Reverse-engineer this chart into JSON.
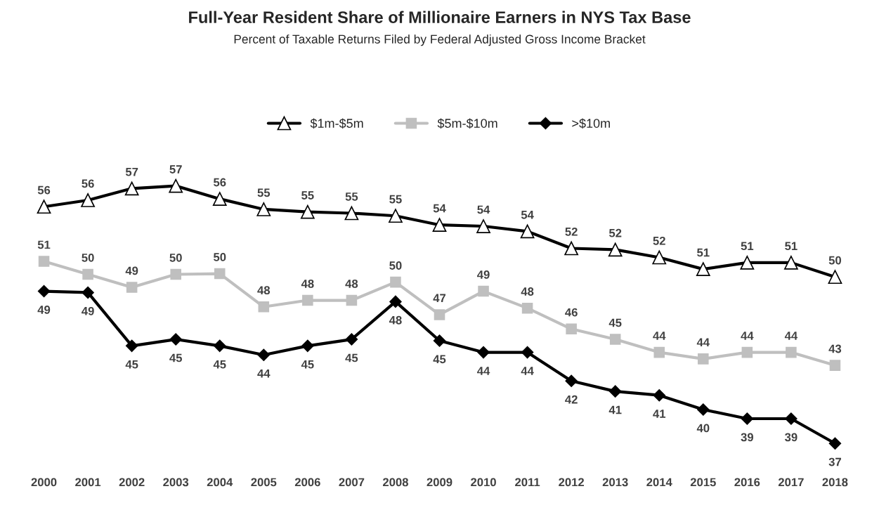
{
  "chart_data": {
    "type": "line",
    "title": "Full-Year Resident Share of Millionaire Earners in NYS Tax Base",
    "subtitle": "Percent of Taxable Returns Filed by Federal Adjusted Gross Income Bracket",
    "categories": [
      "2000",
      "2001",
      "2002",
      "2003",
      "2004",
      "2005",
      "2006",
      "2007",
      "2008",
      "2009",
      "2010",
      "2011",
      "2012",
      "2013",
      "2014",
      "2015",
      "2016",
      "2017",
      "2018"
    ],
    "series": [
      {
        "name": "$1m-$5m",
        "color": "#000000",
        "marker": "triangle",
        "values": [
          55.6,
          56.1,
          57.0,
          57.2,
          56.2,
          55.4,
          55.2,
          55.1,
          54.9,
          54.2,
          54.1,
          53.7,
          52.4,
          52.3,
          51.7,
          50.8,
          51.3,
          51.3,
          50.2
        ],
        "value_labels": [
          "56",
          "56",
          "57",
          "57",
          "56",
          "55",
          "55",
          "55",
          "55",
          "54",
          "54",
          "54",
          "52",
          "52",
          "52",
          "51",
          "51",
          "51",
          "50"
        ]
      },
      {
        "name": "$5m-$10m",
        "color": "#bfbfbf",
        "marker": "square",
        "values": [
          51.4,
          50.4,
          49.4,
          50.4,
          50.45,
          47.9,
          48.4,
          48.4,
          49.8,
          47.3,
          49.1,
          47.8,
          46.2,
          45.4,
          44.4,
          43.9,
          44.4,
          44.4,
          43.4
        ],
        "value_labels": [
          "51",
          "50",
          "49",
          "50",
          "50",
          "48",
          "48",
          "48",
          "50",
          "47",
          "49",
          "48",
          "46",
          "45",
          "44",
          "44",
          "44",
          "44",
          "43"
        ]
      },
      {
        "name": ">$10m",
        "color": "#000000",
        "marker": "diamond",
        "values": [
          49.1,
          49.0,
          44.9,
          45.4,
          44.9,
          44.2,
          44.9,
          45.4,
          48.3,
          45.3,
          44.4,
          44.4,
          42.2,
          41.4,
          41.1,
          40.0,
          39.3,
          39.3,
          37.4
        ],
        "value_labels": [
          "49",
          "49",
          "45",
          "45",
          "45",
          "44",
          "45",
          "45",
          "48",
          "45",
          "44",
          "44",
          "42",
          "41",
          "41",
          "40",
          "39",
          "39",
          "37"
        ]
      }
    ],
    "legend": "top",
    "tick_labels": "x",
    "grid": false
  }
}
